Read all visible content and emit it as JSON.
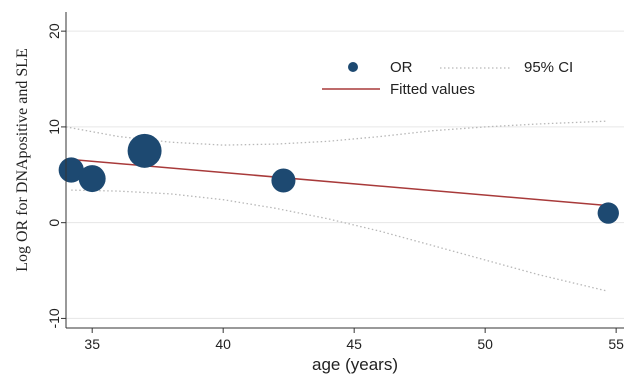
{
  "chart_data": {
    "type": "scatter",
    "title": "",
    "xlabel": "age (years)",
    "ylabel": "Log OR for DNApositive and SLE",
    "xlim": [
      34,
      55.3
    ],
    "ylim": [
      -11,
      22
    ],
    "x_ticks": [
      35,
      40,
      45,
      50,
      55
    ],
    "y_ticks": [
      -10,
      0,
      10,
      20
    ],
    "grid": true,
    "legend_position": "top-right",
    "colors": {
      "or": "#1d4971",
      "fitted": "#a83a3a",
      "ci": "#b8b8b8",
      "grid": "#e6e6e6"
    },
    "series": [
      {
        "name": "OR",
        "kind": "bubble",
        "points": [
          {
            "x": 34.2,
            "y": 5.5,
            "weight": 0.36
          },
          {
            "x": 35.0,
            "y": 4.6,
            "weight": 0.46
          },
          {
            "x": 37.0,
            "y": 7.5,
            "weight": 1.0
          },
          {
            "x": 42.3,
            "y": 4.4,
            "weight": 0.3
          },
          {
            "x": 54.7,
            "y": 1.0,
            "weight": 0.18
          }
        ]
      },
      {
        "name": "Fitted values",
        "kind": "line",
        "x": [
          34.2,
          54.6
        ],
        "y": [
          6.6,
          1.8
        ]
      },
      {
        "name": "95% CI",
        "kind": "ci-band",
        "upper": {
          "x": [
            34.0,
            36,
            38,
            40,
            42,
            44,
            46,
            48,
            50,
            52,
            54.6
          ],
          "y": [
            10.0,
            9.0,
            8.4,
            8.1,
            8.2,
            8.5,
            9.0,
            9.6,
            10.0,
            10.3,
            10.6
          ]
        },
        "lower": {
          "x": [
            34.2,
            36,
            38,
            40,
            42,
            44,
            46,
            48,
            50,
            52,
            54.6
          ],
          "y": [
            3.4,
            3.3,
            3.0,
            2.4,
            1.5,
            0.4,
            -0.9,
            -2.4,
            -3.9,
            -5.4,
            -7.1
          ]
        }
      }
    ],
    "legend": {
      "or_label": "OR",
      "ci_label": "95% CI",
      "fitted_label": "Fitted values"
    }
  }
}
